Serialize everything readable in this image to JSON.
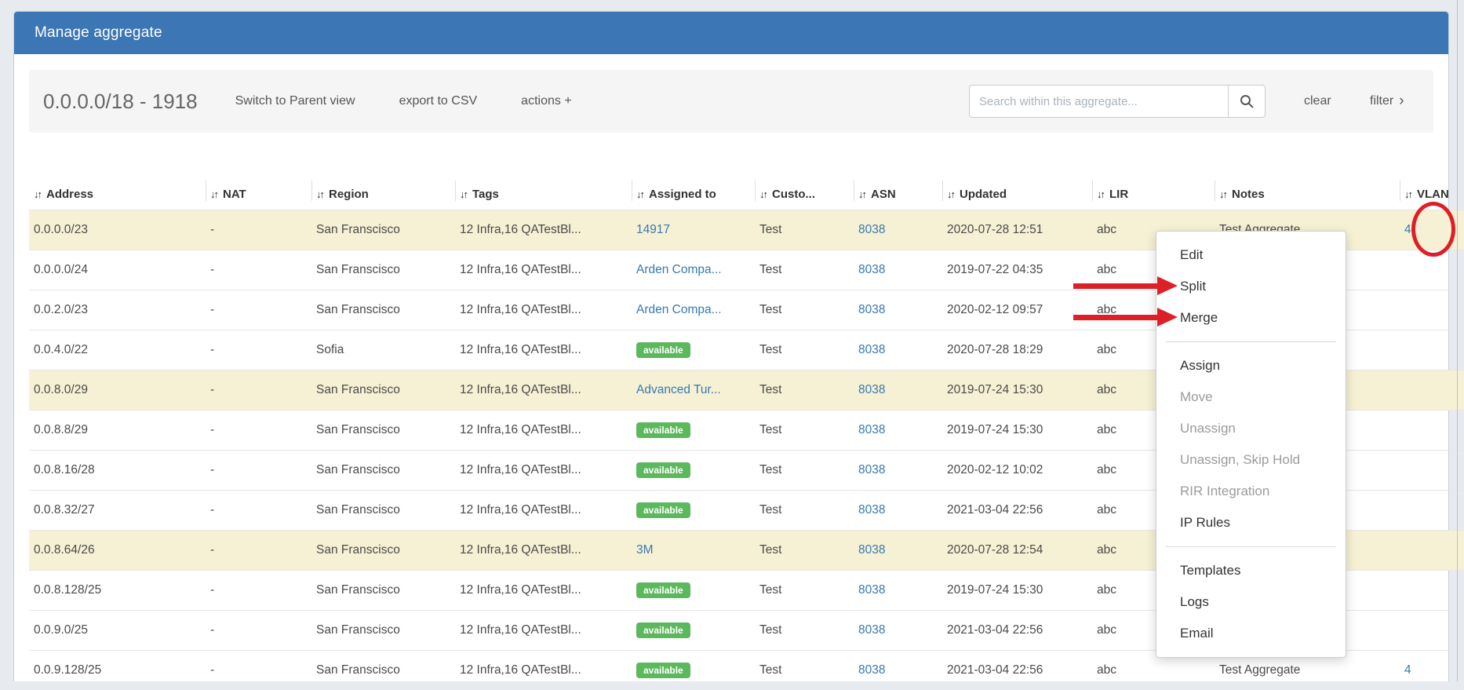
{
  "window": {
    "title": "Manage aggregate"
  },
  "colors": {
    "header_blue": "#3d76b5",
    "link_blue": "#3779b0",
    "badge_green": "#5cb85c",
    "row_highlight": "#f6f1d5",
    "annotation_red": "#dd2026",
    "gear_blue": "#3a6ea5"
  },
  "toolbar": {
    "aggregate_label": "0.0.0.0/18 - 1918",
    "switch_view": "Switch to Parent view",
    "export_csv": "export to CSV",
    "actions": "actions +",
    "search_placeholder": "Search within this aggregate...",
    "clear": "clear",
    "filter": "filter",
    "filter_chevron": "›"
  },
  "table": {
    "sort_icon": "↓↑",
    "headers": [
      "Address",
      "NAT",
      "Region",
      "Tags",
      "Assigned to",
      "Custo...",
      "ASN",
      "Updated",
      "LIR",
      "Notes",
      "VLAN"
    ],
    "rows": [
      {
        "address": "0.0.0.0/23",
        "nat": "-",
        "region": "San Franscisco",
        "tags": "12 Infra,16 QATestBl...",
        "assigned": "14917",
        "assigned_type": "link",
        "customer": "Test",
        "asn": "8038",
        "updated": "2020-07-28 12:51",
        "lir": "abc",
        "notes": "Test Aggregate",
        "vlan": "4",
        "highlighted": true
      },
      {
        "address": "0.0.0.0/24",
        "nat": "-",
        "region": "San Franscisco",
        "tags": "12 Infra,16 QATestBl...",
        "assigned": "Arden Compa...",
        "assigned_type": "link",
        "customer": "Test",
        "asn": "8038",
        "updated": "2019-07-22 04:35",
        "lir": "abc",
        "notes": "",
        "vlan": "",
        "highlighted": false
      },
      {
        "address": "0.0.2.0/23",
        "nat": "-",
        "region": "San Franscisco",
        "tags": "12 Infra,16 QATestBl...",
        "assigned": "Arden Compa...",
        "assigned_type": "link",
        "customer": "Test",
        "asn": "8038",
        "updated": "2020-02-12 09:57",
        "lir": "abc",
        "notes": "",
        "vlan": "",
        "highlighted": false
      },
      {
        "address": "0.0.4.0/22",
        "nat": "-",
        "region": "Sofia",
        "tags": "12 Infra,16 QATestBl...",
        "assigned": "available",
        "assigned_type": "badge",
        "customer": "Test",
        "asn": "8038",
        "updated": "2020-07-28 18:29",
        "lir": "abc",
        "notes": "",
        "vlan": "",
        "highlighted": false
      },
      {
        "address": "0.0.8.0/29",
        "nat": "-",
        "region": "San Franscisco",
        "tags": "12 Infra,16 QATestBl...",
        "assigned": "Advanced Tur...",
        "assigned_type": "link",
        "customer": "Test",
        "asn": "8038",
        "updated": "2019-07-24 15:30",
        "lir": "abc",
        "notes": "",
        "vlan": "",
        "highlighted": true
      },
      {
        "address": "0.0.8.8/29",
        "nat": "-",
        "region": "San Franscisco",
        "tags": "12 Infra,16 QATestBl...",
        "assigned": "available",
        "assigned_type": "badge",
        "customer": "Test",
        "asn": "8038",
        "updated": "2019-07-24 15:30",
        "lir": "abc",
        "notes": "",
        "vlan": "",
        "highlighted": false
      },
      {
        "address": "0.0.8.16/28",
        "nat": "-",
        "region": "San Franscisco",
        "tags": "12 Infra,16 QATestBl...",
        "assigned": "available",
        "assigned_type": "badge",
        "customer": "Test",
        "asn": "8038",
        "updated": "2020-02-12 10:02",
        "lir": "abc",
        "notes": "",
        "vlan": "",
        "highlighted": false
      },
      {
        "address": "0.0.8.32/27",
        "nat": "-",
        "region": "San Franscisco",
        "tags": "12 Infra,16 QATestBl...",
        "assigned": "available",
        "assigned_type": "badge",
        "customer": "Test",
        "asn": "8038",
        "updated": "2021-03-04 22:56",
        "lir": "abc",
        "notes": "",
        "vlan": "",
        "highlighted": false
      },
      {
        "address": "0.0.8.64/26",
        "nat": "-",
        "region": "San Franscisco",
        "tags": "12 Infra,16 QATestBl...",
        "assigned": "3M",
        "assigned_type": "link",
        "customer": "Test",
        "asn": "8038",
        "updated": "2020-07-28 12:54",
        "lir": "abc",
        "notes": "",
        "vlan": "",
        "highlighted": true
      },
      {
        "address": "0.0.8.128/25",
        "nat": "-",
        "region": "San Franscisco",
        "tags": "12 Infra,16 QATestBl...",
        "assigned": "available",
        "assigned_type": "badge",
        "customer": "Test",
        "asn": "8038",
        "updated": "2019-07-24 15:30",
        "lir": "abc",
        "notes": "",
        "vlan": "",
        "highlighted": false
      },
      {
        "address": "0.0.9.0/25",
        "nat": "-",
        "region": "San Franscisco",
        "tags": "12 Infra,16 QATestBl...",
        "assigned": "available",
        "assigned_type": "badge",
        "customer": "Test",
        "asn": "8038",
        "updated": "2021-03-04 22:56",
        "lir": "abc",
        "notes": "",
        "vlan": "",
        "highlighted": false
      },
      {
        "address": "0.0.9.128/25",
        "nat": "-",
        "region": "San Franscisco",
        "tags": "12 Infra,16 QATestBl...",
        "assigned": "available",
        "assigned_type": "badge",
        "customer": "Test",
        "asn": "8038",
        "updated": "2021-03-04 22:56",
        "lir": "abc",
        "notes": "Test Aggregate",
        "vlan": "4",
        "highlighted": false
      }
    ]
  },
  "context_menu": {
    "items": [
      {
        "label": "Edit",
        "enabled": true
      },
      {
        "label": "Split",
        "enabled": true
      },
      {
        "label": "Merge",
        "enabled": true
      },
      {
        "divider": true
      },
      {
        "label": "Assign",
        "enabled": true
      },
      {
        "label": "Move",
        "enabled": false
      },
      {
        "label": "Unassign",
        "enabled": false
      },
      {
        "label": "Unassign, Skip Hold",
        "enabled": false
      },
      {
        "label": "RIR Integration",
        "enabled": false
      },
      {
        "label": "IP Rules",
        "enabled": true
      },
      {
        "divider": true
      },
      {
        "label": "Templates",
        "enabled": true
      },
      {
        "label": "Logs",
        "enabled": true
      },
      {
        "label": "Email",
        "enabled": true
      }
    ]
  },
  "annotations": {
    "circle_target": "row-1-gear-button",
    "arrow_1_target": "Split",
    "arrow_2_target": "Merge"
  }
}
